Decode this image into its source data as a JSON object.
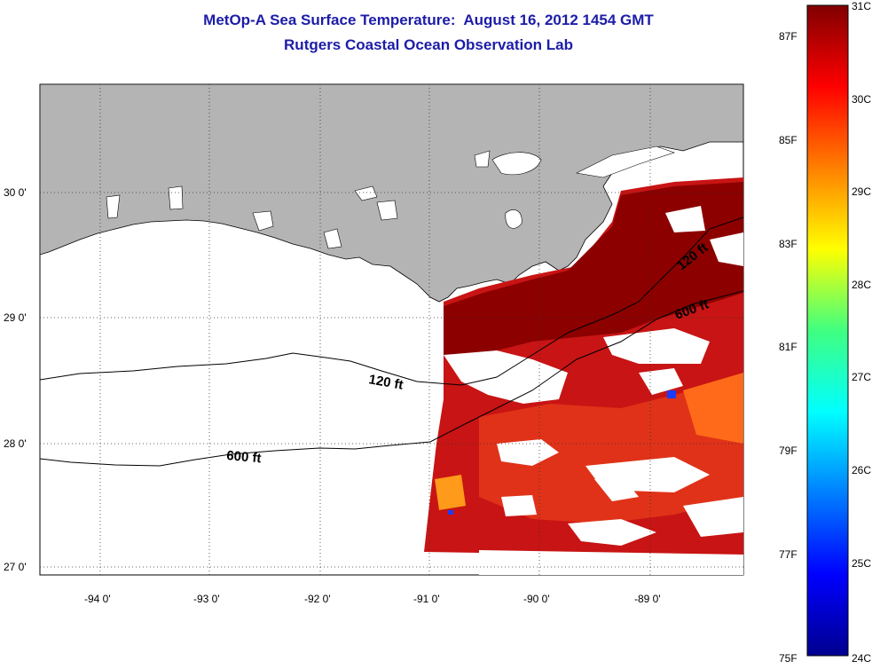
{
  "title": {
    "line1": "MetOp-A Sea Surface Temperature:  August 16, 2012 1454 GMT",
    "line2": "Rutgers Coastal Ocean Observation Lab"
  },
  "map": {
    "lon_labels": [
      "-94 0'",
      "-93 0'",
      "-92 0'",
      "-91 0'",
      "-90 0'",
      "-89 0'"
    ],
    "lat_labels": [
      "30 0'",
      "29 0'",
      "28 0'",
      "27 0'"
    ],
    "lon_range": [
      -94.5,
      -88.0
    ],
    "lat_range": [
      26.95,
      30.85
    ],
    "land_color": "#b4b4b4",
    "grid": "dotted",
    "contours": [
      {
        "label": "120 ft",
        "depth_ft": 120
      },
      {
        "label": "600 ft",
        "depth_ft": 600
      },
      {
        "label": "120 ft",
        "depth_ft": 120
      },
      {
        "label": "600 ft",
        "depth_ft": 600
      }
    ]
  },
  "colorbar": {
    "celsius_labels": [
      "31C",
      "30C",
      "29C",
      "28C",
      "27C",
      "26C",
      "25C",
      "24C"
    ],
    "fahrenheit_labels": [
      "87F",
      "85F",
      "83F",
      "81F",
      "79F",
      "77F",
      "75F"
    ],
    "celsius_range": [
      24,
      31
    ],
    "colormap": "jet"
  }
}
